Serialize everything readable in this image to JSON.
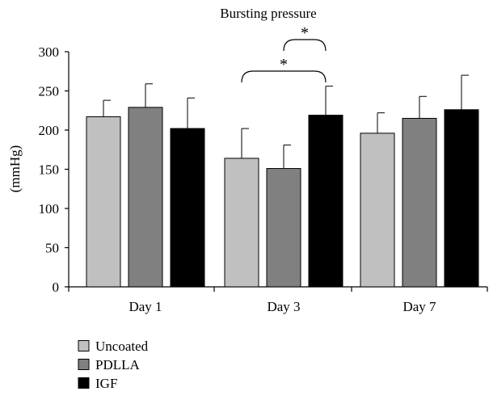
{
  "chart_data": {
    "type": "bar",
    "title": "Bursting pressure",
    "xlabel": "",
    "ylabel": "(mmHg)",
    "categories": [
      "Day 1",
      "Day 3",
      "Day 7"
    ],
    "ylim": [
      0,
      300
    ],
    "yticks": [
      0,
      50,
      100,
      150,
      200,
      250,
      300
    ],
    "grid": false,
    "legend_position": "bottom-left",
    "series": [
      {
        "name": "Uncoated",
        "color": "#c0c0c0",
        "values": [
          217,
          164,
          196
        ],
        "errors": [
          21,
          38,
          26
        ]
      },
      {
        "name": "PDLLA",
        "color": "#808080",
        "values": [
          229,
          151,
          215
        ],
        "errors": [
          30,
          30,
          28
        ]
      },
      {
        "name": "IGF",
        "color": "#000000",
        "values": [
          202,
          219,
          226
        ],
        "errors": [
          39,
          37,
          44
        ]
      }
    ],
    "annotations": [
      {
        "label": "*",
        "category": "Day 3",
        "from_series": "PDLLA",
        "to_series": "IGF"
      },
      {
        "label": "*",
        "category": "Day 3",
        "from_series": "Uncoated",
        "to_series": "IGF"
      }
    ]
  }
}
